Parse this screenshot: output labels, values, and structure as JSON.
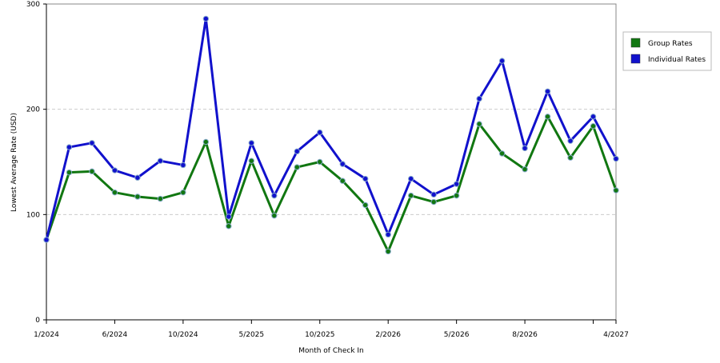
{
  "chart_data": {
    "type": "line",
    "x_label": "Month of Check In",
    "y_label": "Lowest Average Rate (USD)",
    "categories": [
      "1/2024",
      null,
      null,
      "6/2024",
      null,
      null,
      "10/2024",
      null,
      null,
      "5/2025",
      null,
      null,
      "10/2025",
      null,
      null,
      "2/2026",
      null,
      null,
      "5/2026",
      null,
      null,
      "8/2026",
      null,
      null,
      null,
      "4/2027"
    ],
    "series": [
      {
        "name": "Group Rates",
        "color": "#117711",
        "values": [
          76,
          140,
          141,
          121,
          117,
          115,
          121,
          169,
          89,
          151,
          99,
          145,
          150,
          132,
          109,
          65,
          118,
          112,
          118,
          186,
          158,
          143,
          193,
          154,
          184,
          123
        ]
      },
      {
        "name": "Individual Rates",
        "color": "#1111cc",
        "values": [
          76,
          164,
          168,
          142,
          135,
          151,
          147,
          286,
          98,
          168,
          118,
          160,
          178,
          148,
          134,
          81,
          134,
          119,
          129,
          210,
          246,
          163,
          217,
          170,
          193,
          153
        ]
      }
    ],
    "ylim": [
      0,
      300
    ],
    "yticks": [
      0,
      100,
      200,
      300
    ],
    "grid": true,
    "legend": "right"
  }
}
